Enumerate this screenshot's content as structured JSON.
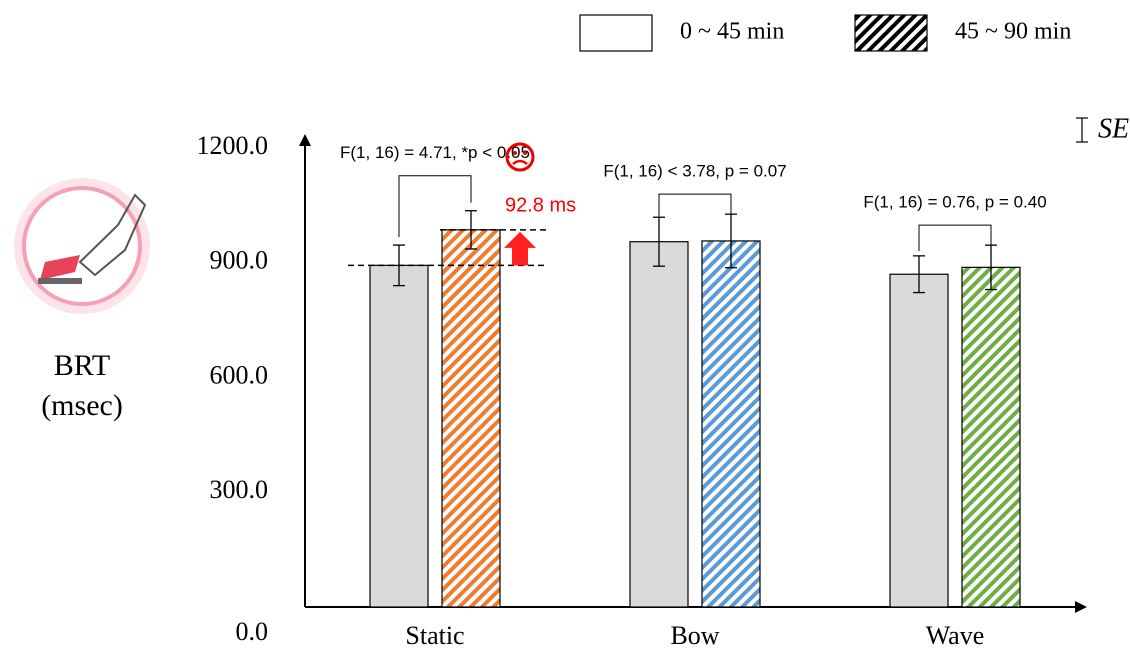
{
  "chart_data": {
    "type": "bar",
    "y_label": [
      "BRT",
      "(msec)"
    ],
    "categories": [
      "Static",
      "Bow",
      "Wave"
    ],
    "series": [
      {
        "name": "0 ~ 45 min",
        "color": "#d9d9d9",
        "values": [
          893.2,
          955,
          870
        ],
        "errors": [
          53,
          64,
          48
        ]
      },
      {
        "name": "45 ~ 90 min",
        "color": "#000000",
        "bar_colors": [
          "#ed7d31",
          "#5b9bd5",
          "#70ad47"
        ],
        "hatch": true,
        "values": [
          986,
          957,
          888
        ],
        "errors": [
          50,
          70,
          58
        ]
      }
    ],
    "ylim": [
      0,
      1200
    ],
    "yticks": [
      {
        "value": 0,
        "label": "0.0"
      },
      {
        "value": 300,
        "label": "300.0"
      },
      {
        "value": 600,
        "label": "600.0"
      },
      {
        "value": 900,
        "label": "900.0"
      },
      {
        "value": 1200,
        "label": "1200.0"
      }
    ],
    "stats": [
      "F(1, 16) = 4.71, *p < 0.05",
      "F(1, 16) < 3.78, p = 0.07",
      "F(1, 16) = 0.76, p = 0.40"
    ],
    "difference_label": "92.8 ms",
    "error_label": "SE"
  }
}
